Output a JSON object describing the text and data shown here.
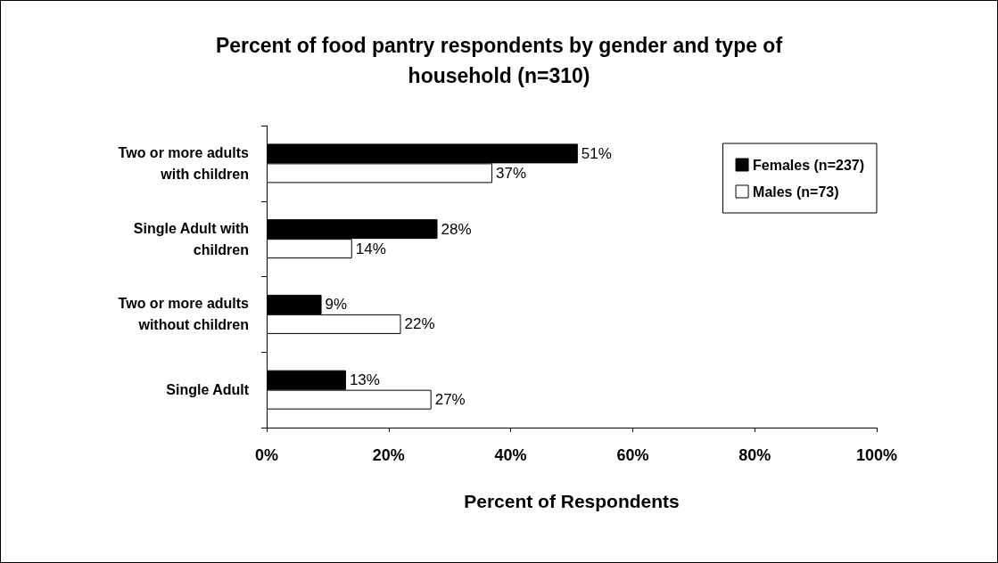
{
  "chart_data": {
    "type": "bar",
    "orientation": "horizontal",
    "title": "Percent of food pantry respondents by gender and type of household (n=310)",
    "xlabel": "Percent of Respondents",
    "categories": [
      "Two or more adults with children",
      "Single Adult with children",
      "Two or more adults without children",
      "Single Adult"
    ],
    "series": [
      {
        "name": "Females (n=237)",
        "color": "#000000",
        "values": [
          51,
          28,
          9,
          13
        ],
        "value_labels": [
          "51%",
          "28%",
          "9%",
          "13%"
        ]
      },
      {
        "name": "Males (n=73)",
        "color": "#ffffff",
        "values": [
          37,
          14,
          22,
          27
        ],
        "value_labels": [
          "37%",
          "14%",
          "22%",
          "27%"
        ]
      }
    ],
    "xlim": [
      0,
      100
    ],
    "xticks": [
      {
        "value": 0,
        "label": "0%"
      },
      {
        "value": 20,
        "label": "20%"
      },
      {
        "value": 40,
        "label": "40%"
      },
      {
        "value": 60,
        "label": "60%"
      },
      {
        "value": 80,
        "label": "80%"
      },
      {
        "value": 100,
        "label": "100%"
      }
    ],
    "grid": false,
    "legend": "top right"
  }
}
